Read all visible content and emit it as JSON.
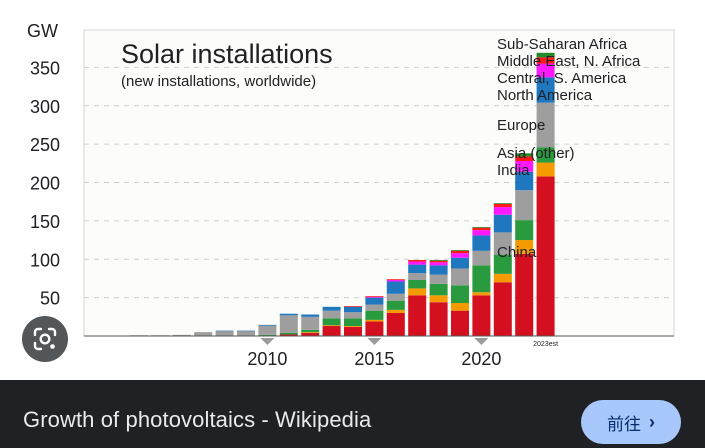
{
  "caption": {
    "title": "Growth of photovoltaics - Wikipedia",
    "visit_label": "前往",
    "visit_icon": "chevron-right-icon"
  },
  "lens": {
    "icon": "lens-search-icon"
  },
  "colors": {
    "China": "#d40f20",
    "India": "#f59b00",
    "Asia (other)": "#2a9a3e",
    "Europe": "#9e9e9e",
    "North America": "#1f77c0",
    "Central, S. America": "#ff19ff",
    "Middle East, N. Africa": "#ff1a1a",
    "Sub-Saharan Africa": "#258a2a"
  },
  "chart_data": {
    "type": "bar",
    "stacked": true,
    "title": "Solar installations",
    "subtitle": "(new installations, worldwide)",
    "ylabel": "GW",
    "ylim": [
      0,
      400
    ],
    "yticks": [
      50,
      100,
      150,
      200,
      250,
      300,
      350
    ],
    "grid": true,
    "x_tick_labels": [
      "2010",
      "2015",
      "2020"
    ],
    "last_bar_label": "2023est",
    "categories": [
      "2004",
      "2005",
      "2006",
      "2007",
      "2008",
      "2009",
      "2010",
      "2011",
      "2012",
      "2013",
      "2014",
      "2015",
      "2016",
      "2017",
      "2018",
      "2019",
      "2020",
      "2021",
      "2022",
      "2023"
    ],
    "series": [
      {
        "name": "China",
        "values": [
          0,
          0,
          0,
          0,
          0,
          0,
          0.5,
          2,
          4,
          13,
          12,
          19,
          30,
          53,
          44,
          33,
          53,
          70,
          107,
          208
        ]
      },
      {
        "name": "India",
        "values": [
          0,
          0,
          0,
          0,
          0,
          0,
          0,
          0,
          1,
          1,
          1,
          2,
          4,
          9,
          9,
          10,
          4,
          11,
          18,
          18
        ]
      },
      {
        "name": "Asia (other)",
        "values": [
          0,
          0,
          0,
          0,
          0.5,
          0.5,
          1,
          2,
          3,
          9,
          10,
          12,
          12,
          11,
          15,
          23,
          35,
          25,
          26,
          20
        ]
      },
      {
        "name": "Europe",
        "values": [
          1,
          1,
          1.5,
          5,
          6,
          6,
          12,
          23,
          17,
          10,
          8,
          8,
          9,
          9,
          12,
          22,
          19,
          29,
          39,
          58
        ]
      },
      {
        "name": "North America",
        "values": [
          0,
          0,
          0,
          0,
          0.5,
          0.5,
          1,
          2,
          3,
          5,
          7,
          9,
          16,
          11,
          12,
          14,
          20,
          23,
          24,
          33
        ]
      },
      {
        "name": "Central, S. America",
        "values": [
          0,
          0,
          0,
          0,
          0,
          0,
          0,
          0,
          0,
          0,
          0,
          1,
          2,
          4,
          4,
          6,
          7,
          10,
          14,
          18
        ]
      },
      {
        "name": "Middle East, N. Africa",
        "values": [
          0,
          0,
          0,
          0,
          0,
          0,
          0,
          0,
          0,
          0,
          1,
          1,
          1,
          2,
          2,
          3,
          3,
          4,
          6,
          8
        ]
      },
      {
        "name": "Sub-Saharan Africa",
        "values": [
          0,
          0,
          0,
          0,
          0,
          0,
          0,
          0,
          0,
          0,
          0,
          0,
          0,
          0,
          1,
          1,
          1,
          1,
          4,
          6
        ]
      }
    ],
    "legend": [
      "Sub-Saharan Africa",
      "Middle East, N. Africa",
      "Central, S. America",
      "North America",
      "Europe",
      "Asia (other)",
      "India",
      "China"
    ]
  }
}
